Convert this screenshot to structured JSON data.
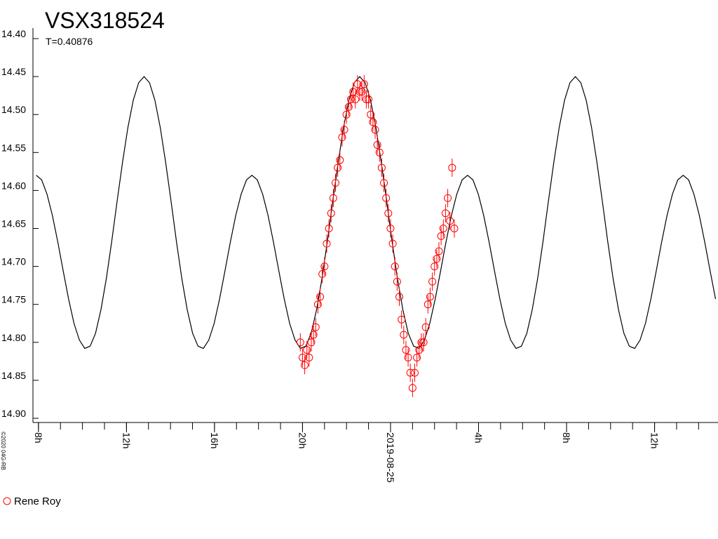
{
  "chart_data": {
    "type": "line",
    "title": "VSX318524",
    "subtitle": "T=0.40876",
    "credit": "©2020 04G-RB",
    "y_inverted": true,
    "xlim": [
      7.75,
      38.85
    ],
    "ylim": [
      14.4,
      14.9
    ],
    "yticks": [
      {
        "value": 14.4,
        "label": "14.40"
      },
      {
        "value": 14.45,
        "label": "14.45"
      },
      {
        "value": 14.5,
        "label": "14.50"
      },
      {
        "value": 14.55,
        "label": "14.55"
      },
      {
        "value": 14.6,
        "label": "14.60"
      },
      {
        "value": 14.65,
        "label": "14.65"
      },
      {
        "value": 14.7,
        "label": "14.70"
      },
      {
        "value": 14.75,
        "label": "14.75"
      },
      {
        "value": 14.8,
        "label": "14.80"
      },
      {
        "value": 14.85,
        "label": "14.85"
      },
      {
        "value": 14.9,
        "label": "14.90"
      }
    ],
    "xticks": [
      {
        "value": 8,
        "label": "8h"
      },
      {
        "value": 12,
        "label": "12h"
      },
      {
        "value": 16,
        "label": "16h"
      },
      {
        "value": 20,
        "label": "20h"
      },
      {
        "value": 24,
        "label": "2019-08-25"
      },
      {
        "value": 28,
        "label": "4h"
      },
      {
        "value": 32,
        "label": "8h"
      },
      {
        "value": 36,
        "label": "12h"
      }
    ],
    "xminorticks": [
      8,
      9,
      10,
      11,
      12,
      13,
      14,
      15,
      16,
      17,
      18,
      19,
      20,
      21,
      22,
      23,
      24,
      25,
      26,
      27,
      28,
      29,
      30,
      31,
      32,
      33,
      34,
      35,
      36,
      37,
      38
    ],
    "legend": "bottom-left",
    "series": [
      {
        "type": "line",
        "color": "#000000",
        "x": [
          7.9,
          8.145,
          8.39,
          8.635,
          8.88,
          9.125,
          9.37,
          9.615,
          9.86,
          10.105,
          10.35,
          10.595,
          10.84,
          11.085,
          11.33,
          11.575,
          11.82,
          12.065,
          12.31,
          12.555,
          12.8,
          13.045,
          13.29,
          13.535,
          13.78,
          14.025,
          14.27,
          14.515,
          14.76,
          15.005,
          15.25,
          15.495,
          15.74,
          15.985,
          16.23,
          16.475,
          16.72,
          16.965,
          17.21,
          17.455,
          17.7,
          17.945,
          18.19,
          18.435,
          18.68,
          18.925,
          19.17,
          19.415,
          19.66,
          19.905,
          20.15,
          20.395,
          20.64,
          20.885,
          21.13,
          21.375,
          21.62,
          21.865,
          22.11,
          22.355,
          22.6,
          22.845,
          23.09,
          23.335,
          23.58,
          23.825,
          24.07,
          24.315,
          24.56,
          24.805,
          25.05,
          25.295,
          25.54,
          25.785,
          26.03,
          26.275,
          26.52,
          26.765,
          27.01,
          27.255,
          27.5,
          27.745,
          27.99,
          28.235,
          28.48,
          28.725,
          28.97,
          29.215,
          29.46,
          29.705,
          29.95,
          30.195,
          30.44,
          30.685,
          30.93,
          31.175,
          31.42,
          31.665,
          31.91,
          32.155,
          32.4,
          32.645,
          32.89,
          33.135,
          33.38,
          33.625,
          33.87,
          34.115,
          34.36,
          34.605,
          34.85,
          35.095,
          35.34,
          35.585,
          35.83,
          36.075,
          36.32,
          36.565,
          36.81,
          37.055,
          37.3,
          37.545,
          37.79,
          38.035,
          38.28,
          38.525,
          38.77
        ],
        "values": [
          14.58,
          14.586,
          14.605,
          14.633,
          14.668,
          14.706,
          14.743,
          14.775,
          14.797,
          14.808,
          14.805,
          14.788,
          14.757,
          14.716,
          14.667,
          14.614,
          14.563,
          14.517,
          14.481,
          14.458,
          14.45,
          14.458,
          14.481,
          14.517,
          14.563,
          14.614,
          14.667,
          14.716,
          14.757,
          14.788,
          14.805,
          14.808,
          14.797,
          14.775,
          14.743,
          14.706,
          14.668,
          14.633,
          14.605,
          14.586,
          14.58,
          14.586,
          14.605,
          14.633,
          14.668,
          14.706,
          14.743,
          14.775,
          14.797,
          14.808,
          14.805,
          14.788,
          14.757,
          14.716,
          14.667,
          14.614,
          14.563,
          14.517,
          14.481,
          14.458,
          14.45,
          14.458,
          14.481,
          14.517,
          14.563,
          14.614,
          14.667,
          14.716,
          14.757,
          14.788,
          14.805,
          14.808,
          14.797,
          14.775,
          14.743,
          14.706,
          14.668,
          14.633,
          14.605,
          14.586,
          14.58,
          14.586,
          14.605,
          14.633,
          14.668,
          14.706,
          14.743,
          14.775,
          14.797,
          14.808,
          14.805,
          14.788,
          14.757,
          14.716,
          14.667,
          14.614,
          14.563,
          14.517,
          14.481,
          14.458,
          14.45,
          14.458,
          14.481,
          14.517,
          14.563,
          14.614,
          14.667,
          14.716,
          14.757,
          14.788,
          14.805,
          14.808,
          14.797,
          14.775,
          14.743,
          14.706,
          14.668,
          14.633,
          14.605,
          14.586,
          14.58,
          14.586,
          14.605,
          14.633,
          14.668,
          14.706,
          14.743
        ]
      },
      {
        "type": "scatter",
        "name": "Rene Roy",
        "color": "#ff0000",
        "error": 0.012,
        "x": [
          19.9,
          20,
          20.1,
          20.2,
          20.3,
          20.4,
          20.5,
          20.6,
          20.7,
          20.8,
          20.9,
          21,
          21.1,
          21.2,
          21.3,
          21.4,
          21.5,
          21.6,
          21.7,
          21.8,
          21.9,
          22,
          22.1,
          22.2,
          22.3,
          22.4,
          22.5,
          22.6,
          22.7,
          22.8,
          22.9,
          23,
          23.1,
          23.2,
          23.3,
          23.4,
          23.5,
          23.6,
          23.7,
          23.8,
          23.9,
          24,
          24.1,
          24.2,
          24.3,
          24.4,
          24.5,
          24.6,
          24.7,
          24.8,
          24.9,
          25,
          25.1,
          25.2,
          25.3,
          25.4,
          25.5,
          25.6,
          25.7,
          25.8,
          25.9,
          26,
          26.1,
          26.2,
          26.3,
          26.4,
          26.5,
          26.6,
          26.7,
          26.8,
          26.9
        ],
        "values": [
          14.8,
          14.82,
          14.83,
          14.81,
          14.82,
          14.8,
          14.79,
          14.78,
          14.75,
          14.74,
          14.71,
          14.7,
          14.67,
          14.65,
          14.63,
          14.61,
          14.59,
          14.57,
          14.56,
          14.53,
          14.52,
          14.5,
          14.49,
          14.48,
          14.47,
          14.48,
          14.46,
          14.47,
          14.47,
          14.46,
          14.48,
          14.48,
          14.5,
          14.51,
          14.52,
          14.54,
          14.55,
          14.57,
          14.59,
          14.61,
          14.63,
          14.65,
          14.67,
          14.7,
          14.72,
          14.74,
          14.77,
          14.79,
          14.81,
          14.82,
          14.84,
          14.86,
          14.84,
          14.82,
          14.81,
          14.8,
          14.8,
          14.78,
          14.75,
          14.74,
          14.72,
          14.7,
          14.69,
          14.68,
          14.66,
          14.65,
          14.63,
          14.61,
          14.64,
          14.57,
          14.65
        ]
      }
    ]
  }
}
